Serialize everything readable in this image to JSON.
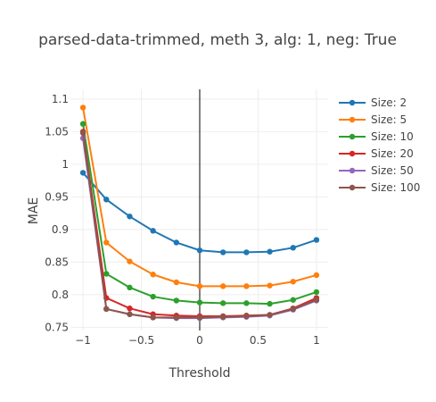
{
  "chart_data": {
    "type": "line",
    "title": "parsed-data-trimmed, meth 3, alg: 1, neg: True",
    "xlabel": "Threshold",
    "ylabel": "MAE",
    "xlim": [
      -1.1,
      1.1
    ],
    "ylim": [
      0.745,
      1.115
    ],
    "xticks": [
      -1,
      -0.5,
      0,
      0.5,
      1
    ],
    "xtick_labels": [
      "−1",
      "−0.5",
      "0",
      "0.5",
      "1"
    ],
    "yticks": [
      0.75,
      0.8,
      0.85,
      0.9,
      0.95,
      1,
      1.05,
      1.1
    ],
    "ytick_labels": [
      "0.75",
      "0.8",
      "0.85",
      "0.9",
      "0.95",
      "1",
      "1.05",
      "1.1"
    ],
    "grid": true,
    "legend_position": "right",
    "x": [
      -1,
      -0.8,
      -0.6,
      -0.4,
      -0.2,
      0,
      0.2,
      0.4,
      0.6,
      0.8,
      1
    ],
    "series": [
      {
        "name": "Size: 2",
        "color": "#1f77b4",
        "values": [
          0.987,
          0.946,
          0.92,
          0.898,
          0.88,
          0.868,
          0.865,
          0.865,
          0.866,
          0.872,
          0.884
        ]
      },
      {
        "name": "Size: 5",
        "color": "#ff7f0e",
        "values": [
          1.087,
          0.88,
          0.851,
          0.831,
          0.819,
          0.813,
          0.813,
          0.813,
          0.814,
          0.82,
          0.83
        ]
      },
      {
        "name": "Size: 10",
        "color": "#2ca02c",
        "values": [
          1.062,
          0.832,
          0.811,
          0.797,
          0.791,
          0.788,
          0.787,
          0.787,
          0.786,
          0.792,
          0.804
        ]
      },
      {
        "name": "Size: 20",
        "color": "#d62728",
        "values": [
          1.05,
          0.795,
          0.779,
          0.77,
          0.768,
          0.767,
          0.767,
          0.768,
          0.769,
          0.779,
          0.795
        ]
      },
      {
        "name": "Size: 50",
        "color": "#9467bd",
        "values": [
          1.04,
          0.778,
          0.77,
          0.765,
          0.764,
          0.764,
          0.765,
          0.766,
          0.768,
          0.777,
          0.791
        ]
      },
      {
        "name": "Size: 100",
        "color": "#8c564b",
        "values": [
          1.048,
          0.778,
          0.77,
          0.765,
          0.765,
          0.765,
          0.766,
          0.767,
          0.769,
          0.778,
          0.792
        ]
      }
    ],
    "zero_line_color": "#000000",
    "grid_color": "#eeeeee"
  }
}
